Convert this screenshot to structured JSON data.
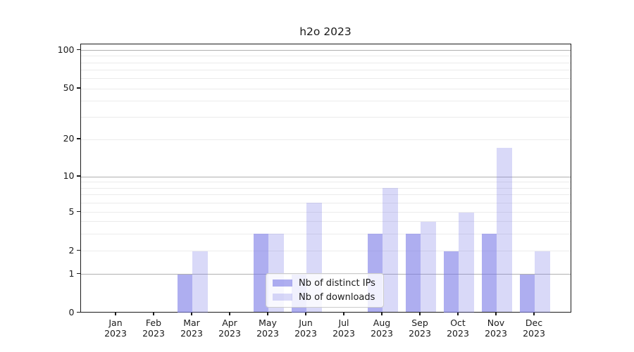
{
  "chart_data": {
    "type": "bar",
    "title": "h2o 2023",
    "categories": [
      "Jan",
      "Feb",
      "Mar",
      "Apr",
      "May",
      "Jun",
      "Jul",
      "Aug",
      "Sep",
      "Oct",
      "Nov",
      "Dec"
    ],
    "category_year": "2023",
    "series": [
      {
        "name": "Nb of distinct IPs",
        "color": "rgba(120,120,230,0.60)",
        "values": [
          0,
          0,
          1,
          0,
          3,
          1,
          0,
          3,
          3,
          2,
          3,
          1
        ]
      },
      {
        "name": "Nb of downloads",
        "color": "rgba(120,120,230,0.28)",
        "values": [
          0,
          0,
          2,
          0,
          3,
          6,
          0,
          8,
          4,
          5,
          17,
          2
        ]
      }
    ],
    "yticks": [
      0,
      1,
      2,
      5,
      10,
      20,
      50,
      100
    ],
    "major_gridlines": [
      1,
      10,
      100
    ],
    "minor_gridlines": [
      2,
      3,
      4,
      5,
      6,
      7,
      8,
      9,
      20,
      30,
      40,
      50,
      60,
      70,
      80,
      90
    ],
    "scale": "symlog",
    "ylim": [
      0,
      112
    ],
    "grid": true,
    "legend": {
      "position": "lower center",
      "labels": [
        "Nb of distinct IPs",
        "Nb of downloads"
      ]
    }
  },
  "colors": {
    "grid_major": "#b0b0b0",
    "grid_minor": "#ebebeb",
    "axis": "#1a1a1a",
    "legend_border": "#cccccc"
  }
}
